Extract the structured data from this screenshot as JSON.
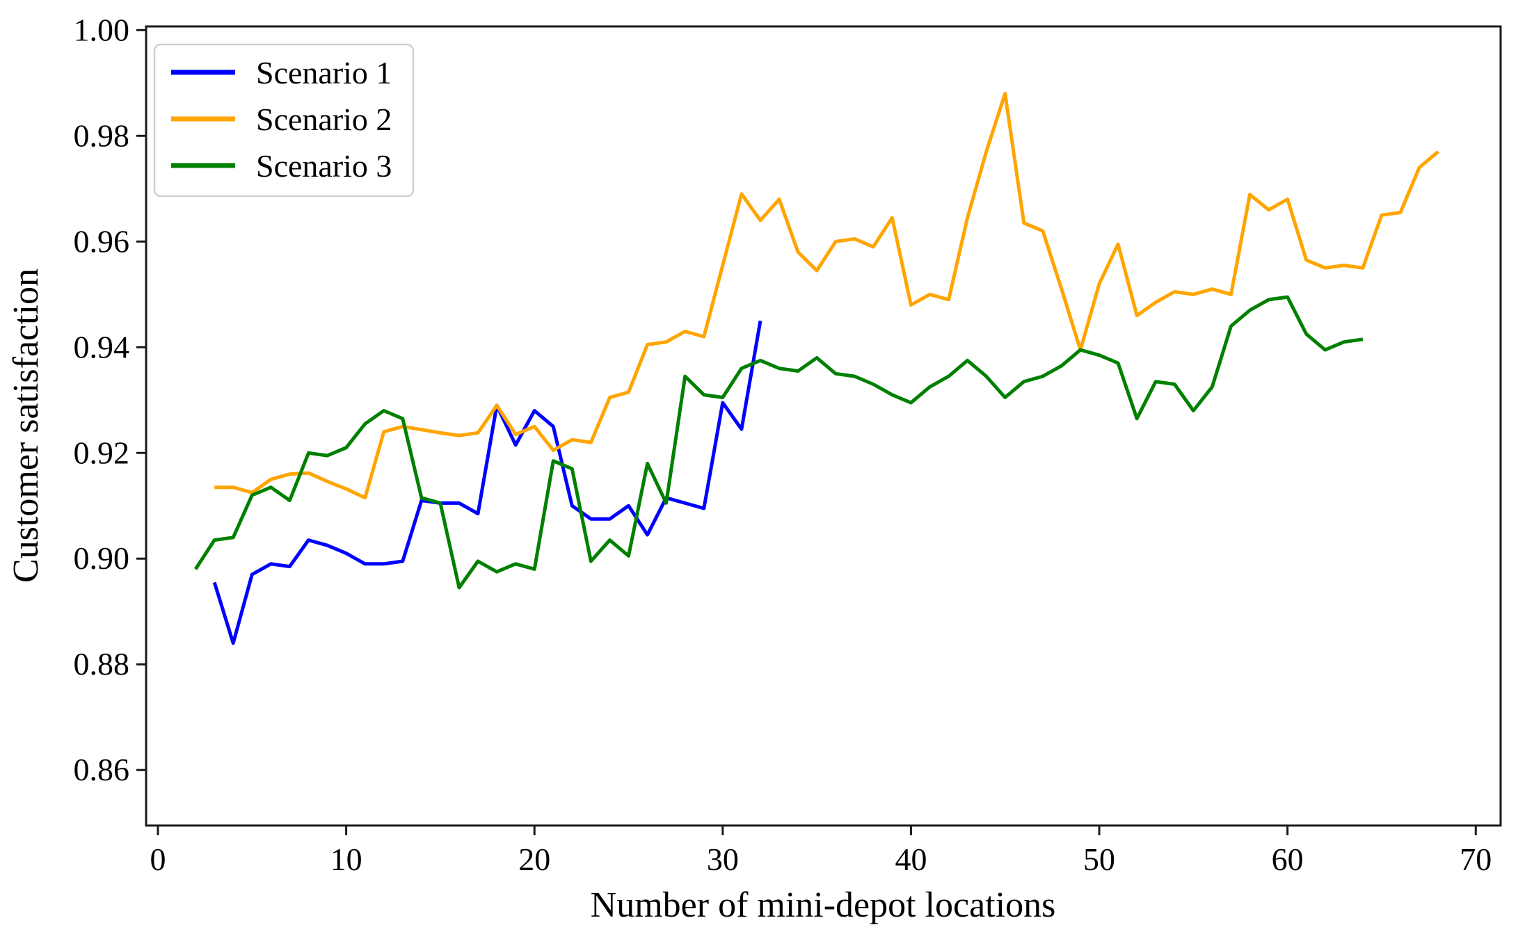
{
  "chart_data": {
    "type": "line",
    "title": "",
    "xlabel": "Number of mini-depot locations",
    "ylabel": "Customer satisfaction",
    "xlim": [
      -0.628,
      71.32
    ],
    "ylim": [
      0.8495,
      1.0007
    ],
    "x_ticks": [
      0,
      10,
      20,
      30,
      40,
      50,
      60,
      70
    ],
    "y_ticks": [
      0.86,
      0.88,
      0.9,
      0.92,
      0.94,
      0.96,
      0.98,
      1.0
    ],
    "grid": false,
    "legend_position": "upper left",
    "background_color": "#ffffff",
    "spine_color": "#1a1a1a",
    "series": [
      {
        "name": "Scenario 1",
        "color": "#0000ff",
        "x_start": 3,
        "x_end": 32,
        "values": [
          0.8955,
          0.884,
          0.897,
          0.899,
          0.8985,
          0.9035,
          0.9025,
          0.901,
          0.899,
          0.899,
          0.8995,
          0.911,
          0.9105,
          0.9105,
          0.9085,
          0.929,
          0.9215,
          0.928,
          0.925,
          0.91,
          0.9075,
          0.9075,
          0.91,
          0.9045,
          0.9115,
          0.9105,
          0.9095,
          0.9295,
          0.9245,
          0.945
        ]
      },
      {
        "name": "Scenario 2",
        "color": "#ffa500",
        "x_start": 3,
        "x_end": 68,
        "values": [
          0.9135,
          0.9135,
          0.9125,
          0.915,
          0.916,
          0.9162,
          0.9146,
          0.9132,
          0.9115,
          0.924,
          0.925,
          0.9244,
          0.9238,
          0.9233,
          0.9238,
          0.929,
          0.9235,
          0.925,
          0.9205,
          0.9225,
          0.922,
          0.9305,
          0.9315,
          0.9405,
          0.941,
          0.943,
          0.942,
          0.9555,
          0.969,
          0.964,
          0.968,
          0.958,
          0.9545,
          0.96,
          0.9605,
          0.959,
          0.9645,
          0.948,
          0.95,
          0.949,
          0.9645,
          0.977,
          0.988,
          0.9635,
          0.962,
          0.951,
          0.9395,
          0.952,
          0.9595,
          0.946,
          0.9485,
          0.9505,
          0.95,
          0.951,
          0.95,
          0.9689,
          0.966,
          0.968,
          0.9565,
          0.955,
          0.9555,
          0.955,
          0.965,
          0.9655,
          0.974,
          0.977
        ]
      },
      {
        "name": "Scenario 3",
        "color": "#008000",
        "x_start": 2,
        "x_end": 64,
        "values": [
          0.898,
          0.9035,
          0.904,
          0.912,
          0.9135,
          0.911,
          0.92,
          0.9195,
          0.921,
          0.9255,
          0.928,
          0.9265,
          0.9115,
          0.9105,
          0.8945,
          0.8995,
          0.8975,
          0.899,
          0.898,
          0.9185,
          0.917,
          0.8995,
          0.9035,
          0.9005,
          0.918,
          0.9105,
          0.9345,
          0.931,
          0.9305,
          0.936,
          0.9375,
          0.936,
          0.9355,
          0.938,
          0.935,
          0.9345,
          0.933,
          0.931,
          0.9295,
          0.9325,
          0.9345,
          0.9375,
          0.9345,
          0.9305,
          0.9335,
          0.9345,
          0.9365,
          0.9395,
          0.9385,
          0.937,
          0.9265,
          0.9335,
          0.933,
          0.928,
          0.9325,
          0.944,
          0.947,
          0.949,
          0.9495,
          0.9425,
          0.9395,
          0.941,
          0.9415
        ]
      }
    ],
    "legend": {
      "entries": [
        {
          "label": "Scenario 1",
          "color": "#0000ff"
        },
        {
          "label": "Scenario 2",
          "color": "#ffa500"
        },
        {
          "label": "Scenario 3",
          "color": "#008000"
        }
      ]
    }
  }
}
